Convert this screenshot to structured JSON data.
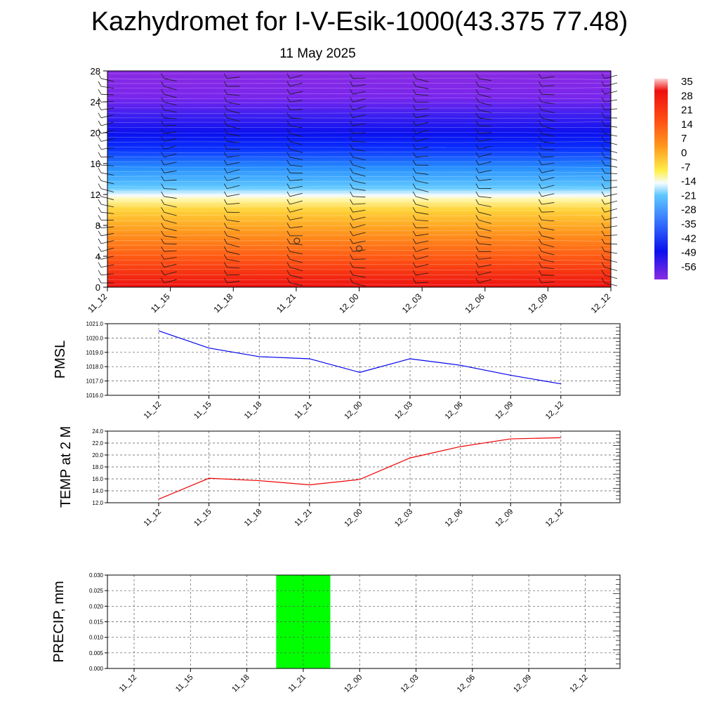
{
  "title": "Kazhydromet for I-V-Esik-1000(43.375 77.48)",
  "subtitle": "11 May 2025",
  "chart_data": [
    {
      "type": "heatmap",
      "y_ticks": [
        "0",
        "4",
        "8",
        "12",
        "16",
        "20",
        "24",
        "28"
      ],
      "ylim": [
        0,
        28
      ],
      "x_ticks": [
        "11_12",
        "11_15",
        "11_18",
        "11_21",
        "12_00",
        "12_03",
        "12_06",
        "12_09",
        "12_12"
      ],
      "colorbar_labels": [
        "35",
        "28",
        "21",
        "14",
        "7",
        "0",
        "-7",
        "-14",
        "-21",
        "-28",
        "-35",
        "-42",
        "-49",
        "-56"
      ],
      "colorbar_range": [
        -63,
        42
      ],
      "freezing_level_approx": 12,
      "wind_barbs": true,
      "colors": {
        "violet": "#8a2be2",
        "blue": "#0a10ee",
        "light_blue": "#5fc8ff",
        "white": "#f5fbff",
        "yellow": "#fff04a",
        "orange": "#ff9a1e",
        "red": "#ee1010"
      }
    },
    {
      "type": "line",
      "ylabel": "PMSL",
      "ylim": [
        1016.0,
        1021.0
      ],
      "y_ticks": [
        "1016.0",
        "1017.0",
        "1018.0",
        "1019.0",
        "1020.0",
        "1021.0"
      ],
      "categories": [
        "11_12",
        "11_15",
        "11_18",
        "11_21",
        "12_00",
        "12_03",
        "12_06",
        "12_09",
        "12_12"
      ],
      "values": [
        1020.5,
        1019.3,
        1018.7,
        1018.55,
        1017.6,
        1018.55,
        1018.1,
        1017.4,
        1016.8
      ],
      "color": "#0000ee",
      "grid": true
    },
    {
      "type": "line",
      "ylabel": "TEMP at 2 M",
      "ylim": [
        12.0,
        24.0
      ],
      "y_ticks": [
        "12.0",
        "14.0",
        "16.0",
        "18.0",
        "20.0",
        "22.0",
        "24.0"
      ],
      "categories": [
        "11_12",
        "11_15",
        "11_18",
        "11_21",
        "12_00",
        "12_03",
        "12_06",
        "12_09",
        "12_12"
      ],
      "values": [
        12.6,
        16.1,
        15.7,
        15.0,
        15.9,
        19.5,
        21.4,
        22.7,
        22.9
      ],
      "color": "#ee0000",
      "grid": true
    },
    {
      "type": "bar",
      "ylabel": "PRECIP, mm",
      "ylim": [
        0.0,
        0.03
      ],
      "y_ticks": [
        "0.000",
        "0.005",
        "0.010",
        "0.015",
        "0.020",
        "0.025",
        "0.030"
      ],
      "categories": [
        "11_12",
        "11_15",
        "11_18",
        "11_21",
        "12_00",
        "12_03",
        "12_06",
        "12_09",
        "12_12"
      ],
      "values": [
        0,
        0,
        0,
        0.03,
        0,
        0,
        0,
        0,
        0
      ],
      "color": "#00ff00",
      "grid": true
    }
  ]
}
